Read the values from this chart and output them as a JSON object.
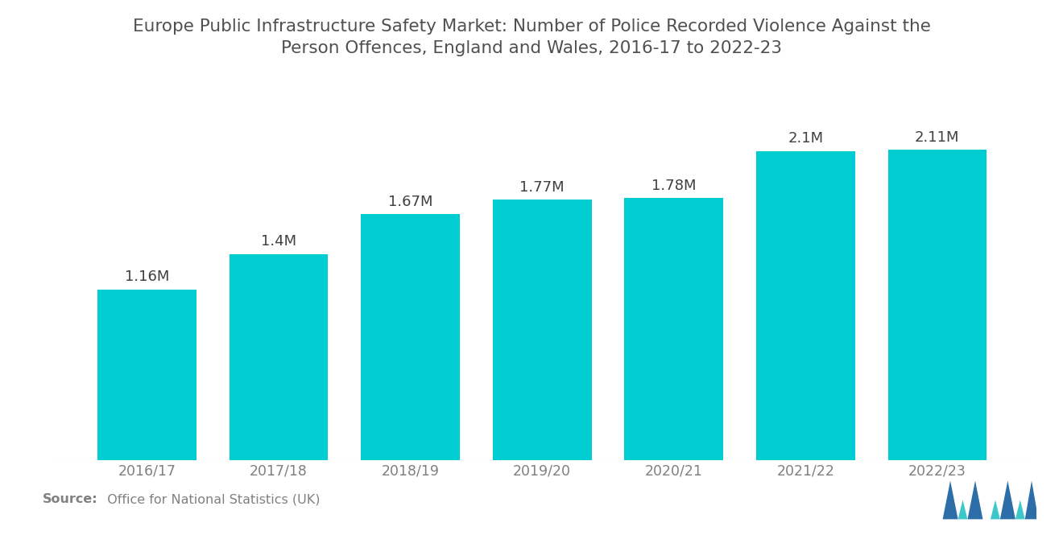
{
  "title_line1": "Europe Public Infrastructure Safety Market: Number of Police Recorded Violence Against the",
  "title_line2": "Person Offences, England and Wales, 2016-17 to 2022-23",
  "categories": [
    "2016/17",
    "2017/18",
    "2018/19",
    "2019/20",
    "2020/21",
    "2021/22",
    "2022/23"
  ],
  "values": [
    1.16,
    1.4,
    1.67,
    1.77,
    1.78,
    2.1,
    2.11
  ],
  "labels": [
    "1.16M",
    "1.4M",
    "1.67M",
    "1.77M",
    "1.78M",
    "2.1M",
    "2.11M"
  ],
  "bar_color": "#00CDD1",
  "background_color": "#ffffff",
  "title_color": "#505050",
  "label_color": "#404040",
  "tick_color": "#808080",
  "source_bold": "Source:",
  "source_rest": "  Office for National Statistics (UK)",
  "ylim": [
    0,
    2.6
  ],
  "title_fontsize": 15.5,
  "label_fontsize": 13,
  "tick_fontsize": 12.5,
  "source_fontsize": 11.5,
  "bar_width": 0.75,
  "logo_blue": "#2D6DA8",
  "logo_teal": "#3CC8CA"
}
